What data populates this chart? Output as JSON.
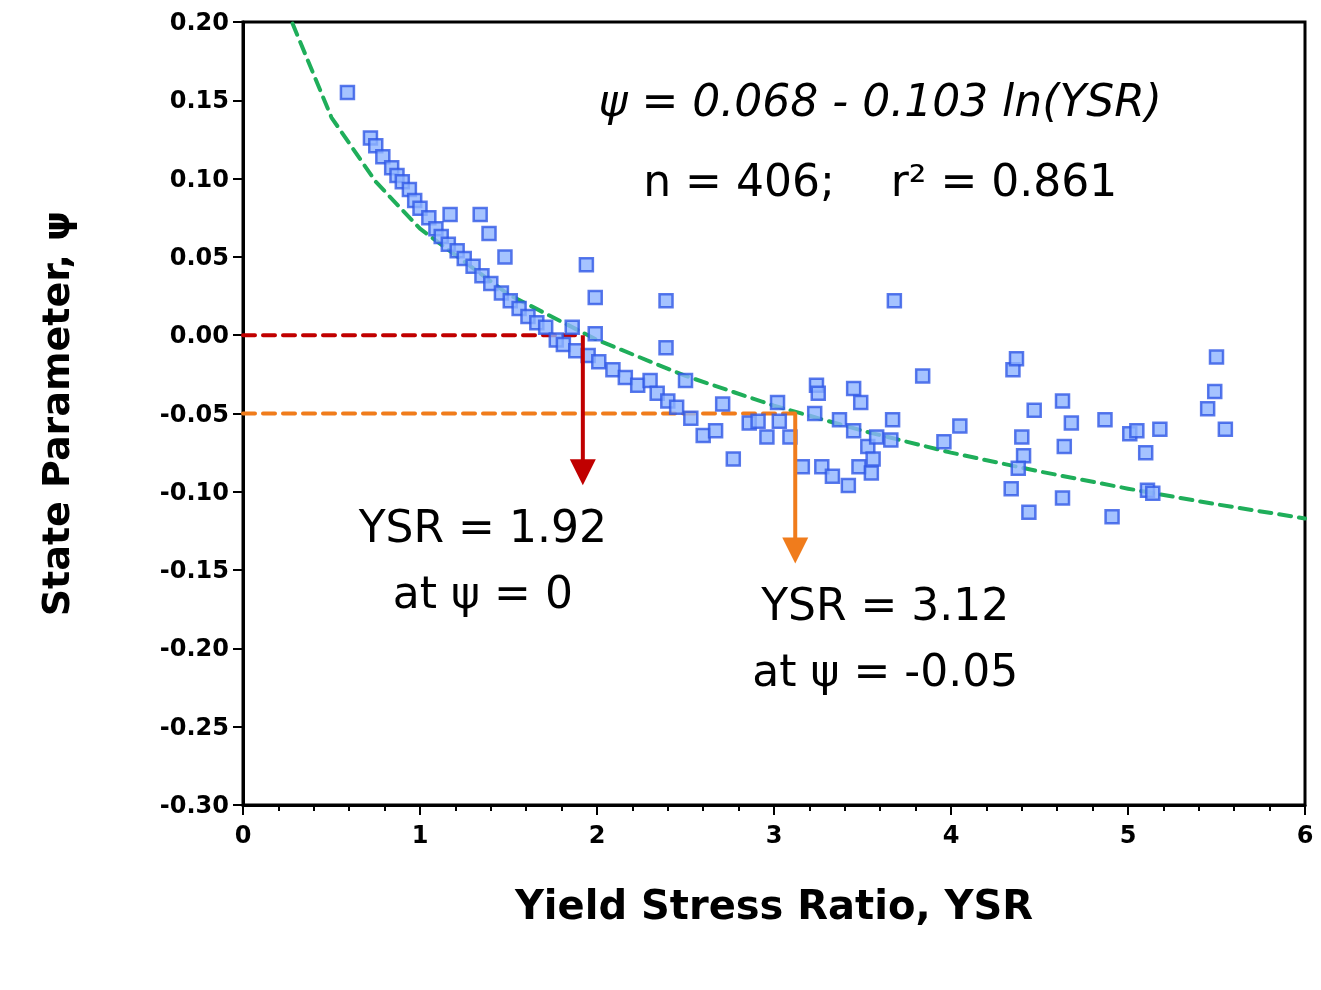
{
  "chart_data": {
    "type": "scatter",
    "xlabel": "Yield Stress Ratio, YSR",
    "ylabel": "State Parameter, ψ",
    "xlim": [
      0,
      6
    ],
    "xticks": [
      0,
      1,
      2,
      3,
      4,
      5,
      6
    ],
    "ylim": [
      -0.3,
      0.2
    ],
    "yticks": [
      {
        "value": -0.3,
        "label": "-0.30"
      },
      {
        "value": -0.25,
        "label": "-0.25"
      },
      {
        "value": -0.2,
        "label": "-0.20"
      },
      {
        "value": -0.15,
        "label": "-0.15"
      },
      {
        "value": -0.1,
        "label": "-0.10"
      },
      {
        "value": -0.05,
        "label": "-0.05"
      },
      {
        "value": 0,
        "label": "0.00"
      },
      {
        "value": 0.05,
        "label": "0.05"
      },
      {
        "value": 0.1,
        "label": "0.10"
      },
      {
        "value": 0.15,
        "label": "0.15"
      },
      {
        "value": 0.2,
        "label": "0.20"
      }
    ],
    "grid": false,
    "series": [
      {
        "color": "#2f57e6",
        "marker": "square",
        "x": [
          0.59,
          0.72,
          0.75,
          0.79,
          0.84,
          0.87,
          0.9,
          0.94,
          0.97,
          1.0,
          1.05,
          1.09,
          1.12,
          1.17,
          1.16,
          1.21,
          1.25,
          1.3,
          1.34,
          1.39,
          1.48,
          1.35,
          1.4,
          1.46,
          1.51,
          1.56,
          1.61,
          1.66,
          1.71,
          1.86,
          1.77,
          1.81,
          1.88,
          1.94,
          1.99,
          1.99,
          1.95,
          2.01,
          2.09,
          2.16,
          2.23,
          2.3,
          2.39,
          2.39,
          2.34,
          2.4,
          2.45,
          2.5,
          2.53,
          2.6,
          2.67,
          2.71,
          2.77,
          2.86,
          2.91,
          2.96,
          3.02,
          3.03,
          3.09,
          3.16,
          3.24,
          3.25,
          3.23,
          3.27,
          3.33,
          3.37,
          3.42,
          3.45,
          3.49,
          3.45,
          3.48,
          3.53,
          3.55,
          3.58,
          3.56,
          3.68,
          3.67,
          3.66,
          3.84,
          3.96,
          4.05,
          4.34,
          4.35,
          4.37,
          4.4,
          4.41,
          4.38,
          4.44,
          4.47,
          4.63,
          4.64,
          4.68,
          4.63,
          4.87,
          4.91,
          5.01,
          5.05,
          5.1,
          5.11,
          5.14,
          5.18,
          5.45,
          5.49,
          5.5,
          5.55
        ],
        "values": [
          0.155,
          0.126,
          0.121,
          0.114,
          0.107,
          0.102,
          0.098,
          0.093,
          0.086,
          0.081,
          0.075,
          0.068,
          0.063,
          0.077,
          0.058,
          0.054,
          0.049,
          0.044,
          0.077,
          0.065,
          0.05,
          0.038,
          0.033,
          0.027,
          0.022,
          0.017,
          0.012,
          0.008,
          0.005,
          0.005,
          -0.003,
          -0.006,
          -0.01,
          0.045,
          0.024,
          0.001,
          -0.013,
          -0.017,
          -0.022,
          -0.027,
          -0.032,
          -0.029,
          0.022,
          -0.008,
          -0.037,
          -0.042,
          -0.046,
          -0.029,
          -0.053,
          -0.064,
          -0.061,
          -0.044,
          -0.079,
          -0.056,
          -0.055,
          -0.065,
          -0.043,
          -0.055,
          -0.065,
          -0.084,
          -0.032,
          -0.037,
          -0.05,
          -0.084,
          -0.09,
          -0.054,
          -0.096,
          -0.034,
          -0.043,
          -0.061,
          -0.084,
          -0.071,
          -0.088,
          -0.065,
          -0.079,
          0.022,
          -0.054,
          -0.067,
          -0.026,
          -0.068,
          -0.058,
          -0.098,
          -0.022,
          -0.015,
          -0.065,
          -0.077,
          -0.085,
          -0.113,
          -0.048,
          -0.042,
          -0.071,
          -0.056,
          -0.104,
          -0.054,
          -0.116,
          -0.063,
          -0.061,
          -0.075,
          -0.099,
          -0.101,
          -0.06,
          -0.047,
          -0.036,
          -0.014,
          -0.06
        ]
      },
      {
        "type": "line",
        "color": "#1fae5a",
        "line_style": "dashed",
        "marker": "none",
        "x": [
          0.28,
          0.5,
          0.75,
          1,
          1.5,
          2,
          2.5,
          3,
          3.5,
          4,
          4.5,
          5,
          5.5,
          6
        ],
        "values": [
          0.199,
          0.139,
          0.098,
          0.068,
          0.026,
          -0.003,
          -0.026,
          -0.045,
          -0.061,
          -0.075,
          -0.087,
          -0.098,
          -0.108,
          -0.117
        ]
      },
      {
        "type": "line",
        "color": "#c00000",
        "line_style": "dashed",
        "marker": "none",
        "x": [
          0,
          1.92
        ],
        "values": [
          0,
          0
        ]
      },
      {
        "type": "line",
        "color": "#f07c1c",
        "line_style": "dashed",
        "marker": "none",
        "x": [
          0,
          3.12
        ],
        "values": [
          -0.05,
          -0.05
        ]
      }
    ],
    "annotations": [
      "ψ = 0.068 - 0.103 ln(YSR)",
      "n = 406;    r² = 0.861",
      {
        "text": "YSR = 1.92\nat ψ = 0",
        "x": 1.92,
        "y": 0
      },
      {
        "text": "YSR = 3.12\nat ψ = -0.05",
        "x": 3.12,
        "y": -0.05
      }
    ]
  }
}
